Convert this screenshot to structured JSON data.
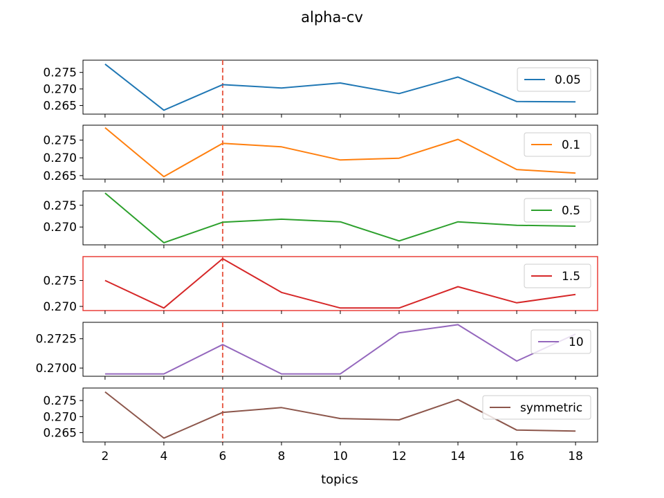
{
  "chart_data": {
    "type": "line",
    "title": "alpha-cv",
    "xlabel": "topics",
    "x": [
      2,
      4,
      6,
      8,
      10,
      12,
      14,
      16,
      18
    ],
    "xticks": [
      "2",
      "4",
      "6",
      "8",
      "10",
      "12",
      "14",
      "16",
      "18"
    ],
    "xlim": [
      1.25,
      18.75
    ],
    "vline": {
      "x": 6,
      "color": "#e8604c",
      "style": "dashed"
    },
    "highlight_color": "#e8312a",
    "legend_location": "right",
    "panels": [
      {
        "series": {
          "name": "0.05",
          "color": "#1f77b4",
          "values": [
            0.2775,
            0.2636,
            0.2713,
            0.2703,
            0.2718,
            0.2686,
            0.2736,
            0.2662,
            0.2661
          ]
        },
        "ylim": [
          0.2624,
          0.2787
        ],
        "yticks": [
          0.265,
          0.27,
          0.275
        ],
        "ytick_labels": [
          "0.265",
          "0.270",
          "0.275"
        ],
        "highlighted": false
      },
      {
        "series": {
          "name": "0.1",
          "color": "#ff7f0e",
          "values": [
            0.2785,
            0.2647,
            0.2741,
            0.2731,
            0.2694,
            0.2699,
            0.2752,
            0.2667,
            0.2657
          ]
        },
        "ylim": [
          0.264,
          0.2792
        ],
        "yticks": [
          0.265,
          0.27,
          0.275
        ],
        "ytick_labels": [
          "0.265",
          "0.270",
          "0.275"
        ],
        "highlighted": false
      },
      {
        "series": {
          "name": "0.5",
          "color": "#2ca02c",
          "values": [
            0.2778,
            0.2664,
            0.2711,
            0.2718,
            0.2712,
            0.2668,
            0.2712,
            0.2704,
            0.2702
          ]
        },
        "ylim": [
          0.2659,
          0.2783
        ],
        "yticks": [
          0.27,
          0.275
        ],
        "ytick_labels": [
          "0.270",
          "0.275"
        ],
        "highlighted": false
      },
      {
        "series": {
          "name": "1.5",
          "color": "#d62728",
          "values": [
            0.275,
            0.2697,
            0.2792,
            0.2727,
            0.2697,
            0.2697,
            0.2738,
            0.2707,
            0.2723
          ]
        },
        "ylim": [
          0.2692,
          0.2796
        ],
        "yticks": [
          0.27,
          0.275
        ],
        "ytick_labels": [
          "0.270",
          "0.275"
        ],
        "highlighted": true
      },
      {
        "series": {
          "name": "10",
          "color": "#9467bd",
          "values": [
            0.2695,
            0.2695,
            0.272,
            0.2695,
            0.2695,
            0.273,
            0.2737,
            0.2706,
            0.2729
          ]
        },
        "ylim": [
          0.2693,
          0.2739
        ],
        "yticks": [
          0.27,
          0.2725
        ],
        "ytick_labels": [
          "0.2700",
          "0.2725"
        ],
        "highlighted": false
      },
      {
        "series": {
          "name": "symmetric",
          "color": "#8c564b",
          "values": [
            0.2777,
            0.2633,
            0.2713,
            0.2728,
            0.2694,
            0.269,
            0.2753,
            0.2658,
            0.2655
          ]
        },
        "ylim": [
          0.2621,
          0.2789
        ],
        "yticks": [
          0.265,
          0.27,
          0.275
        ],
        "ytick_labels": [
          "0.265",
          "0.270",
          "0.275"
        ],
        "highlighted": false
      }
    ]
  }
}
